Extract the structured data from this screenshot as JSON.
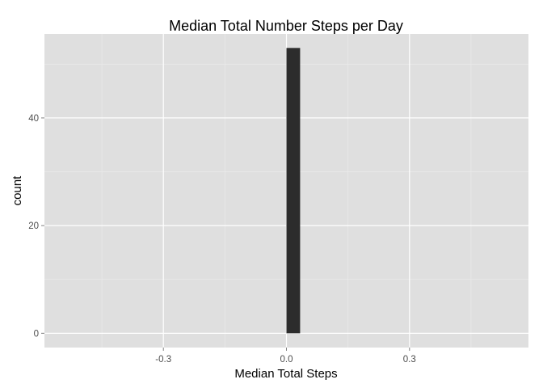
{
  "chart_data": {
    "type": "bar",
    "title": "Median Total Number Steps per Day",
    "xlabel": "Median Total Steps",
    "ylabel": "count",
    "x_ticks": [
      -0.3,
      0.0,
      0.3
    ],
    "x_tick_labels": [
      "-0.3",
      "0.0",
      "0.3"
    ],
    "y_ticks": [
      0,
      20,
      40
    ],
    "y_tick_labels": [
      "0",
      "20",
      "40"
    ],
    "xlim": [
      -0.59,
      0.59
    ],
    "ylim": [
      -2.65,
      55.6
    ],
    "bins": [
      {
        "x_start": 0.0,
        "x_end": 0.0333,
        "count": 53
      }
    ],
    "grid": true,
    "colors": {
      "panel_background": "#dfdfdf",
      "grid_major": "#ffffff",
      "grid_minor": "#ececec",
      "bar_fill": "#2c2c2c",
      "tick_text": "#4d4d4d"
    }
  }
}
